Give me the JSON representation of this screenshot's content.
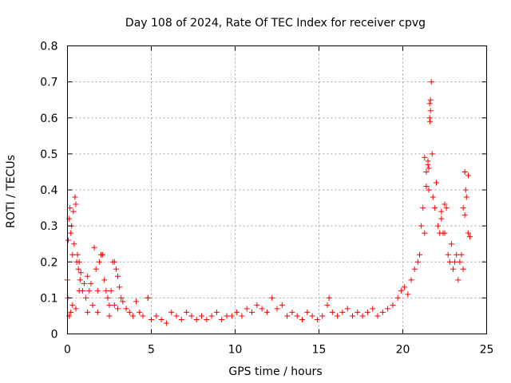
{
  "chart_data": {
    "type": "scatter",
    "title": "Day 108 of 2024, Rate Of TEC Index for receiver cpvg",
    "xlabel": "GPS time / hours",
    "ylabel": "ROTI / TECUs",
    "xlim": [
      0,
      25
    ],
    "ylim": [
      0,
      0.8
    ],
    "x_ticks": [
      0,
      5,
      10,
      15,
      20,
      25
    ],
    "y_ticks": [
      0,
      0.1,
      0.2,
      0.3,
      0.4,
      0.5,
      0.6,
      0.7,
      0.8
    ],
    "x_tick_labels": [
      "0",
      "5",
      "10",
      "15",
      "20",
      "25"
    ],
    "y_tick_labels": [
      "0",
      "0.1",
      "0.2",
      "0.3",
      "0.4",
      "0.5",
      "0.6",
      "0.7",
      "0.8"
    ],
    "grid": true,
    "marker": "plus",
    "color": "#ff0000",
    "series": [
      {
        "x": [
          0.0,
          0.05,
          0.1,
          0.15,
          0.2,
          0.25,
          0.3,
          0.35,
          0.4,
          0.45,
          0.5,
          0.55,
          0.6,
          0.65,
          0.7,
          0.75,
          0.8,
          0.9,
          1.0,
          1.1,
          1.2,
          1.3,
          1.4,
          1.5,
          1.6,
          1.7,
          1.8,
          1.9,
          2.0,
          2.1,
          2.2,
          2.3,
          2.4,
          2.5,
          2.6,
          2.7,
          2.8,
          2.9,
          3.0,
          3.1,
          3.2,
          3.3,
          3.5,
          3.7,
          3.9,
          4.1,
          4.3,
          4.5,
          4.8,
          5.0,
          5.3,
          5.6,
          5.9,
          6.2,
          6.5,
          6.8,
          7.1,
          7.4,
          7.7,
          8.0,
          8.3,
          8.6,
          8.9,
          9.2,
          9.5,
          9.8,
          10.1,
          10.4,
          10.7,
          11.0,
          11.3,
          11.6,
          11.9,
          12.2,
          12.5,
          12.8,
          13.1,
          13.4,
          13.7,
          14.0,
          14.3,
          14.6,
          14.9,
          15.2,
          15.5,
          15.6,
          15.8,
          16.1,
          16.4,
          16.7,
          17.0,
          17.3,
          17.6,
          17.9,
          18.2,
          18.5,
          18.8,
          19.1,
          19.4,
          19.7,
          19.9,
          20.1,
          20.3,
          20.5,
          20.7,
          20.9,
          21.0,
          21.1,
          21.2,
          21.3,
          21.4,
          21.5,
          21.55,
          21.6,
          21.65,
          21.7,
          21.75,
          21.8,
          21.9,
          22.0,
          22.1,
          22.2,
          22.3,
          22.4,
          22.5,
          22.6,
          22.7,
          22.8,
          22.9,
          23.0,
          23.1,
          23.2,
          23.3,
          23.4,
          23.5,
          23.6,
          23.7,
          23.75,
          23.8,
          23.9,
          24.0,
          0.02,
          0.1,
          0.2,
          0.3,
          0.5,
          0.7,
          1.2,
          1.8,
          2.5,
          2.8,
          3.0,
          21.6,
          21.62,
          21.65,
          21.55,
          21.5,
          21.4,
          21.3,
          22.3,
          22.5,
          23.6,
          23.7,
          23.9,
          4.8
        ],
        "y": [
          0.15,
          0.26,
          0.32,
          0.35,
          0.28,
          0.3,
          0.22,
          0.34,
          0.25,
          0.38,
          0.36,
          0.2,
          0.22,
          0.18,
          0.2,
          0.15,
          0.17,
          0.12,
          0.14,
          0.1,
          0.16,
          0.12,
          0.14,
          0.08,
          0.24,
          0.18,
          0.12,
          0.2,
          0.22,
          0.22,
          0.15,
          0.12,
          0.1,
          0.08,
          0.12,
          0.2,
          0.2,
          0.18,
          0.16,
          0.13,
          0.1,
          0.09,
          0.07,
          0.06,
          0.05,
          0.09,
          0.06,
          0.05,
          0.1,
          0.04,
          0.05,
          0.04,
          0.03,
          0.06,
          0.05,
          0.04,
          0.06,
          0.05,
          0.04,
          0.05,
          0.04,
          0.05,
          0.06,
          0.04,
          0.05,
          0.05,
          0.06,
          0.05,
          0.07,
          0.06,
          0.08,
          0.07,
          0.06,
          0.1,
          0.07,
          0.08,
          0.05,
          0.06,
          0.05,
          0.04,
          0.06,
          0.05,
          0.04,
          0.05,
          0.08,
          0.1,
          0.06,
          0.05,
          0.06,
          0.07,
          0.05,
          0.06,
          0.05,
          0.06,
          0.07,
          0.05,
          0.06,
          0.07,
          0.08,
          0.1,
          0.12,
          0.13,
          0.11,
          0.15,
          0.18,
          0.2,
          0.22,
          0.3,
          0.35,
          0.49,
          0.45,
          0.48,
          0.4,
          0.64,
          0.65,
          0.7,
          0.5,
          0.38,
          0.35,
          0.42,
          0.3,
          0.28,
          0.34,
          0.28,
          0.36,
          0.35,
          0.22,
          0.2,
          0.25,
          0.18,
          0.2,
          0.22,
          0.15,
          0.2,
          0.22,
          0.18,
          0.45,
          0.4,
          0.38,
          0.28,
          0.27,
          0.1,
          0.05,
          0.06,
          0.08,
          0.07,
          0.12,
          0.06,
          0.06,
          0.05,
          0.08,
          0.07,
          0.6,
          0.59,
          0.62,
          0.46,
          0.47,
          0.41,
          0.28,
          0.32,
          0.28,
          0.35,
          0.33,
          0.44,
          0.1
        ]
      }
    ]
  }
}
